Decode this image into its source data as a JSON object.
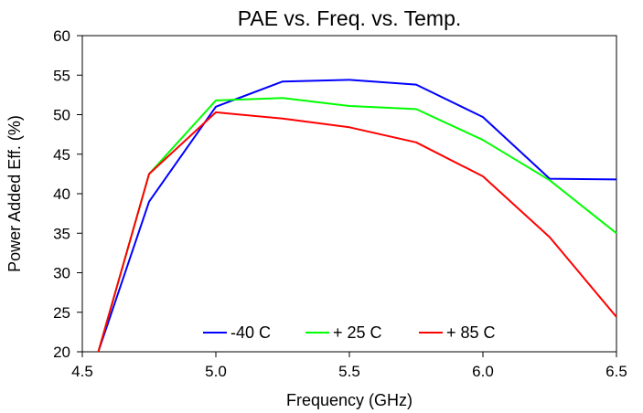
{
  "chart_data": {
    "type": "line",
    "title": "PAE vs. Freq. vs. Temp.",
    "xlabel": "Frequency (GHz)",
    "ylabel": "Power Added Eff. (%)",
    "xlim": [
      4.5,
      6.5
    ],
    "ylim": [
      20,
      60
    ],
    "x_ticks": [
      4.5,
      5.0,
      5.5,
      6.0,
      6.5
    ],
    "x_tick_labels": [
      "4.5",
      "5.0",
      "5.5",
      "6.0",
      "6.5"
    ],
    "y_ticks": [
      20,
      25,
      30,
      35,
      40,
      45,
      50,
      55,
      60
    ],
    "y_tick_labels": [
      "20",
      "25",
      "30",
      "35",
      "40",
      "45",
      "50",
      "55",
      "60"
    ],
    "grid": false,
    "legend_position": "bottom-center",
    "x": [
      4.56,
      4.75,
      5.0,
      5.25,
      5.5,
      5.75,
      6.0,
      6.25,
      6.5
    ],
    "series": [
      {
        "name": "-40 C",
        "color": "#0000ff",
        "values": [
          20.0,
          39.0,
          51.0,
          54.2,
          54.4,
          53.8,
          49.7,
          41.9,
          41.8
        ]
      },
      {
        "name": "+ 25 C",
        "color": "#00ff00",
        "values": [
          20.0,
          42.5,
          51.8,
          52.1,
          51.1,
          50.7,
          46.8,
          41.7,
          35.0
        ]
      },
      {
        "name": "+ 85 C",
        "color": "#ff0000",
        "values": [
          20.0,
          42.5,
          50.3,
          49.5,
          48.4,
          46.5,
          42.2,
          34.5,
          24.4
        ]
      }
    ]
  }
}
